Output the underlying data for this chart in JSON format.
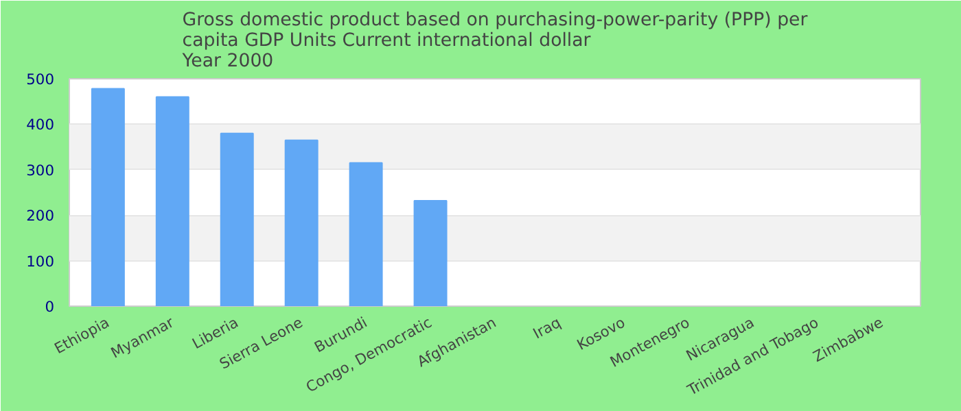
{
  "chart_data": {
    "type": "bar",
    "title": "Gross domestic product based on purchasing-power-parity (PPP) per capita GDP Units Current international dollar",
    "subtitle": "Year 2000",
    "categories": [
      "Ethiopia",
      "Myanmar",
      "Liberia",
      "Sierra Leone",
      "Burundi",
      "Congo, Democratic",
      "Afghanistan",
      "Iraq",
      "Kosovo",
      "Montenegro",
      "Nicaragua",
      "Trinidad and Tobago",
      "Zimbabwe"
    ],
    "values": [
      478,
      460,
      380,
      365,
      315,
      232,
      null,
      null,
      null,
      null,
      null,
      null,
      null
    ],
    "color": "#61a8f5",
    "ylim": [
      0,
      500
    ],
    "yticks": [
      0,
      100,
      200,
      300,
      400,
      500
    ],
    "grid": "y"
  }
}
